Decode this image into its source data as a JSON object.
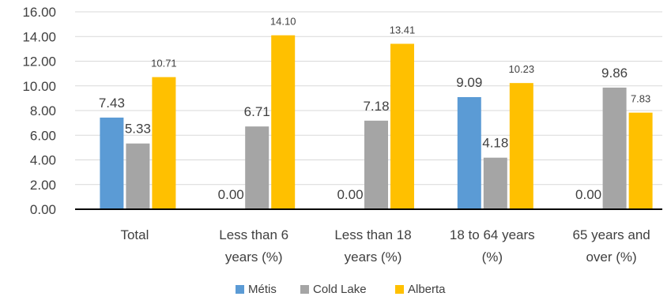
{
  "chart_data": {
    "type": "bar",
    "categories": [
      [
        "Total"
      ],
      [
        "Less than 6",
        "years (%)"
      ],
      [
        "Less than 18",
        "years (%)"
      ],
      [
        "18 to 64 years",
        "(%)"
      ],
      [
        "65 years and",
        "over (%)"
      ]
    ],
    "series": [
      {
        "name": "Métis",
        "color": "#5B9BD5",
        "values": [
          7.43,
          0.0,
          0.0,
          9.09,
          0.0
        ],
        "labels": [
          "7.43",
          "0.00",
          "0.00",
          "9.09",
          "0.00"
        ]
      },
      {
        "name": "Cold Lake",
        "color": "#A5A5A5",
        "values": [
          5.33,
          6.71,
          7.18,
          4.18,
          9.86
        ],
        "labels": [
          "5.33",
          "6.71",
          "7.18",
          "4.18",
          "9.86"
        ]
      },
      {
        "name": "Alberta",
        "color": "#FFC000",
        "values": [
          10.71,
          14.1,
          13.41,
          10.23,
          7.83
        ],
        "labels": [
          "10.71",
          "14.10",
          "13.41",
          "10.23",
          "7.83"
        ]
      }
    ],
    "ylim": [
      0,
      16
    ],
    "yticks": [
      "0.00",
      "2.00",
      "4.00",
      "6.00",
      "8.00",
      "10.00",
      "12.00",
      "14.00",
      "16.00"
    ],
    "grid": true,
    "legend_position": "bottom"
  }
}
